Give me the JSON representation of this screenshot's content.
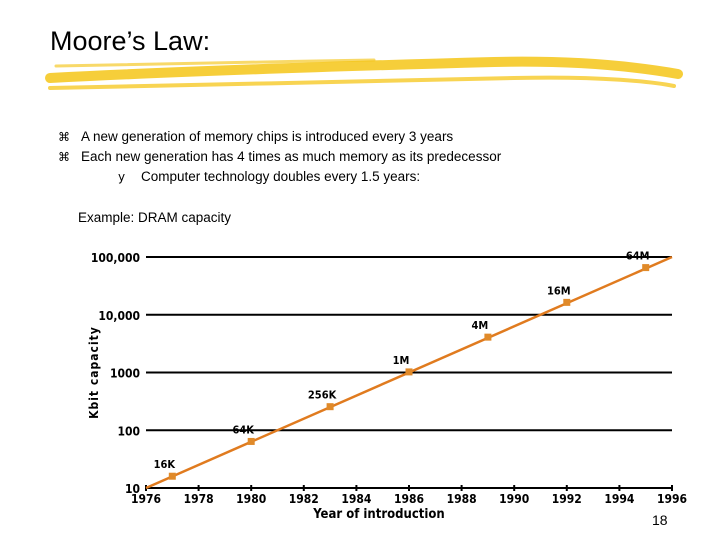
{
  "slide": {
    "title": "Moore’s Law:",
    "bullets": [
      {
        "marker": "⌘",
        "text": "A new generation of memory chips is introduced every 3 years"
      },
      {
        "marker": "⌘",
        "text": "Each new generation has 4 times as much memory as its predecessor"
      }
    ],
    "sub_bullet": {
      "marker": "y",
      "text": "Computer technology doubles every 1.5 years:"
    },
    "example": "Example: DRAM capacity",
    "page_number": "18"
  },
  "colors": {
    "line": "#e07b1f",
    "marker": "#e08a2a",
    "gridline": "#000000",
    "highlight_stroke": "#f5c518"
  },
  "chart_data": {
    "type": "line",
    "title": "",
    "xlabel": "Year of introduction",
    "ylabel": "Kbit capacity",
    "scale_y": "log",
    "ylim": [
      10,
      100000
    ],
    "xlim": [
      1976,
      1996
    ],
    "y_ticks": [
      {
        "value": 100000,
        "label": "100,000"
      },
      {
        "value": 10000,
        "label": "10,000"
      },
      {
        "value": 1000,
        "label": "1000"
      },
      {
        "value": 100,
        "label": "100"
      },
      {
        "value": 10,
        "label": "10"
      }
    ],
    "x_ticks": [
      "1976",
      "1978",
      "1980",
      "1982",
      "1984",
      "1986",
      "1988",
      "1990",
      "1992",
      "1994",
      "1996"
    ],
    "grid": true,
    "points": [
      {
        "year": 1977,
        "kbit": 16,
        "label": "16K"
      },
      {
        "year": 1980,
        "kbit": 64,
        "label": "64K"
      },
      {
        "year": 1983,
        "kbit": 256,
        "label": "256K"
      },
      {
        "year": 1986,
        "kbit": 1024,
        "label": "1M"
      },
      {
        "year": 1989,
        "kbit": 4096,
        "label": "4M"
      },
      {
        "year": 1992,
        "kbit": 16384,
        "label": "16M"
      },
      {
        "year": 1995,
        "kbit": 65536,
        "label": "64M"
      }
    ],
    "trend_line": {
      "start": {
        "year": 1976,
        "kbit": 10
      },
      "end": {
        "year": 1996,
        "kbit": 100000
      }
    }
  }
}
